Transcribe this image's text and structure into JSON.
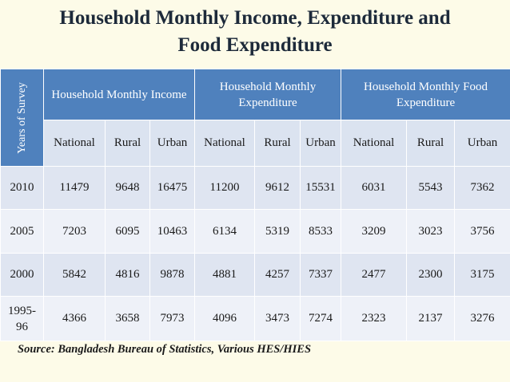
{
  "title_line1": "Household Monthly Income, Expenditure and",
  "title_line2": "Food Expenditure",
  "years_label": "Years of Survey",
  "groups": [
    "Household Monthly Income",
    "Household Monthly Expenditure",
    "Household Monthly Food Expenditure"
  ],
  "subheaders": [
    "National",
    "Rural",
    "Urban",
    "National",
    "Rural",
    "Urban",
    "National",
    "Rural",
    "Urban"
  ],
  "rows": [
    {
      "year": "2010",
      "values": [
        "11479",
        "9648",
        "16475",
        "11200",
        "9612",
        "15531",
        "6031",
        "5543",
        "7362"
      ]
    },
    {
      "year": "2005",
      "values": [
        "7203",
        "6095",
        "10463",
        "6134",
        "5319",
        "8533",
        "3209",
        "3023",
        "3756"
      ]
    },
    {
      "year": "2000",
      "values": [
        "5842",
        "4816",
        "9878",
        "4881",
        "4257",
        "7337",
        "2477",
        "2300",
        "3175"
      ]
    },
    {
      "year": "1995-96",
      "values": [
        "4366",
        "3658",
        "7973",
        "4096",
        "3473",
        "7274",
        "2323",
        "2137",
        "3276"
      ]
    }
  ],
  "source": "Source: Bangladesh Bureau of Statistics, Various HES/HIES",
  "colors": {
    "header": "#4f81bd",
    "row_a": "#dfe5f1",
    "row_b": "#eef1f8",
    "background": "#fdfbe8"
  }
}
